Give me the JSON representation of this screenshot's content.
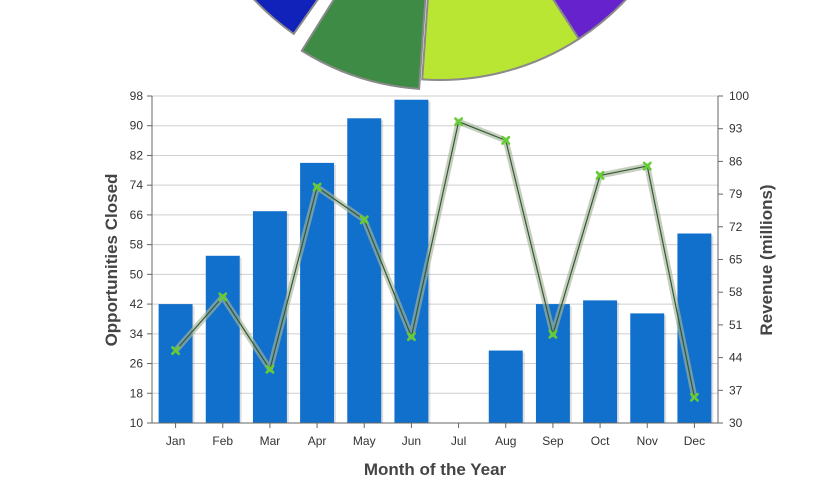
{
  "chart_data": {
    "type": "bar",
    "categories": [
      "Jan",
      "Feb",
      "Mar",
      "Apr",
      "May",
      "Jun",
      "Jul",
      "Aug",
      "Sep",
      "Oct",
      "Nov",
      "Dec"
    ],
    "xlabel": "Month of the Year",
    "ylabel": "Opportunities Closed",
    "y2label": "Revenue (millions)",
    "ylim": [
      10,
      98
    ],
    "y2lim": [
      30,
      100
    ],
    "yticks": [
      "98",
      "90",
      "82",
      "74",
      "66",
      "58",
      "50",
      "42",
      "34",
      "26",
      "18",
      "10"
    ],
    "y2ticks": [
      "100",
      "93",
      "86",
      "79",
      "72",
      "65",
      "58",
      "51",
      "44",
      "37",
      "30"
    ],
    "grid": true,
    "series": [
      {
        "type": "bar",
        "axis": "left",
        "color": "#1170cc",
        "values": [
          42,
          55,
          67,
          80,
          92,
          97,
          null,
          29.5,
          42,
          43,
          39.5,
          61
        ]
      },
      {
        "type": "line",
        "axis": "right",
        "color": "#2f5a35",
        "marker_color": "#66cc33",
        "values": [
          45.5,
          57,
          41.5,
          80.5,
          73.5,
          48.5,
          94.5,
          90.5,
          49,
          83,
          85,
          35.5
        ]
      }
    ],
    "pie_partial": {
      "visible_slices_colors": [
        "#1122bb",
        "#3e8b45",
        "#b8e632",
        "#6622cc"
      ]
    }
  }
}
